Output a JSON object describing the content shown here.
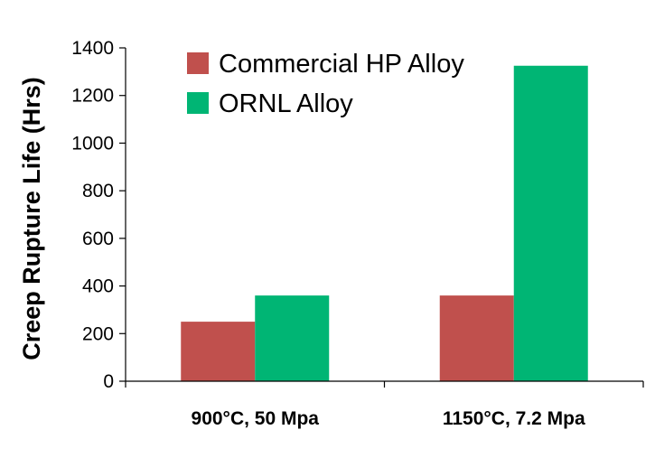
{
  "chart_data": {
    "type": "bar",
    "title": "",
    "xlabel": "",
    "ylabel": "Creep Rupture Life (Hrs)",
    "ylim": [
      0,
      1400
    ],
    "yticks": [
      0,
      200,
      400,
      600,
      800,
      1000,
      1200,
      1400
    ],
    "categories": [
      "900°C, 50 Mpa",
      "1150°C, 7.2 Mpa"
    ],
    "series": [
      {
        "name": "Commercial HP Alloy",
        "color": "#c0504d",
        "values": [
          250,
          360
        ]
      },
      {
        "name": "ORNL Alloy",
        "color": "#00b574",
        "values": [
          360,
          1325
        ]
      }
    ],
    "legend": "top-center",
    "grid": false
  }
}
